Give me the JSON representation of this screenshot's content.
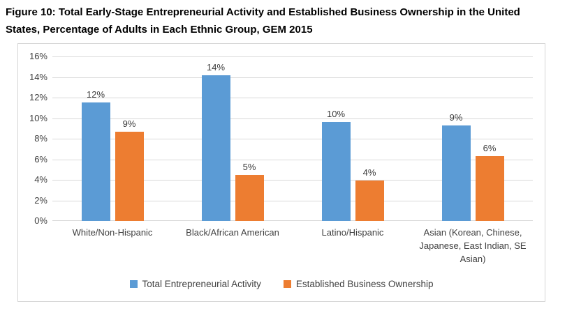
{
  "header": {
    "title_lines": [
      "Figure 10: Total Early-Stage Entrepreneurial Activity and Established Business Ownership in the United",
      "States, Percentage of Adults in Each Ethnic Group, GEM 2015"
    ]
  },
  "chart_data": {
    "type": "bar",
    "title": "Figure 10: Total Early-Stage Entrepreneurial Activity and Established Business Ownership in the United States, Percentage of Adults in Each Ethnic Group, GEM 2015",
    "categories": [
      "White/Non-Hispanic",
      "Black/African American",
      "Latino/Hispanic",
      "Asian (Korean, Chinese, Japanese, East Indian, SE Asian)"
    ],
    "series": [
      {
        "name": "Total Entrepreneurial Activity",
        "color": "#5B9BD5",
        "values": [
          11.5,
          14.2,
          9.6,
          9.3
        ],
        "data_labels": [
          "12%",
          "14%",
          "10%",
          "9%"
        ]
      },
      {
        "name": "Established Business Ownership",
        "color": "#ED7D31",
        "values": [
          8.7,
          4.5,
          3.9,
          6.3
        ],
        "data_labels": [
          "9%",
          "5%",
          "4%",
          "6%"
        ]
      }
    ],
    "xlabel": "",
    "ylabel": "",
    "ylim": [
      0,
      16
    ],
    "yticks": [
      0,
      2,
      4,
      6,
      8,
      10,
      12,
      14,
      16
    ],
    "ytick_labels": [
      "0%",
      "2%",
      "4%",
      "6%",
      "8%",
      "10%",
      "12%",
      "14%",
      "16%"
    ],
    "grid": true,
    "legend_position": "bottom",
    "colors": {
      "grid": "#D9D9D9",
      "frame_border": "#D4D4D4",
      "axis_text": "#404040",
      "data_label_text": "#3A3A3A",
      "title_text": "#000000"
    }
  }
}
